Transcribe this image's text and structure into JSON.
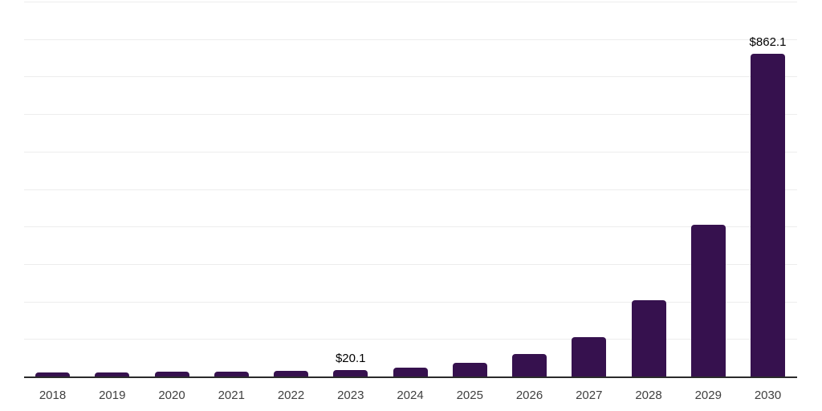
{
  "chart_data": {
    "type": "bar",
    "title": "",
    "xlabel": "",
    "ylabel": "",
    "categories": [
      "2018",
      "2019",
      "2020",
      "2021",
      "2022",
      "2023",
      "2024",
      "2025",
      "2026",
      "2027",
      "2028",
      "2029",
      "2030"
    ],
    "values": [
      13.2,
      13.5,
      14.4,
      14.8,
      17.0,
      20.1,
      25.6,
      38.0,
      61.4,
      107.8,
      204.8,
      406.0,
      862.1
    ],
    "data_labels": {
      "2023": "$20.1",
      "2030": "$862.1"
    },
    "ylim": [
      0,
      1000
    ],
    "gridline_interval": 100,
    "grid": true,
    "y_axis_tick_labels_visible": false,
    "legend": "none",
    "currency_prefix": "$"
  },
  "styles": {
    "background_color": "#FFFFFF",
    "bar_color": "#36114E",
    "gridline_color": "#EDEDED",
    "axis_line_color": "#2B2B2B",
    "tick_label_color": "#404040",
    "value_label_color": "#000000"
  }
}
